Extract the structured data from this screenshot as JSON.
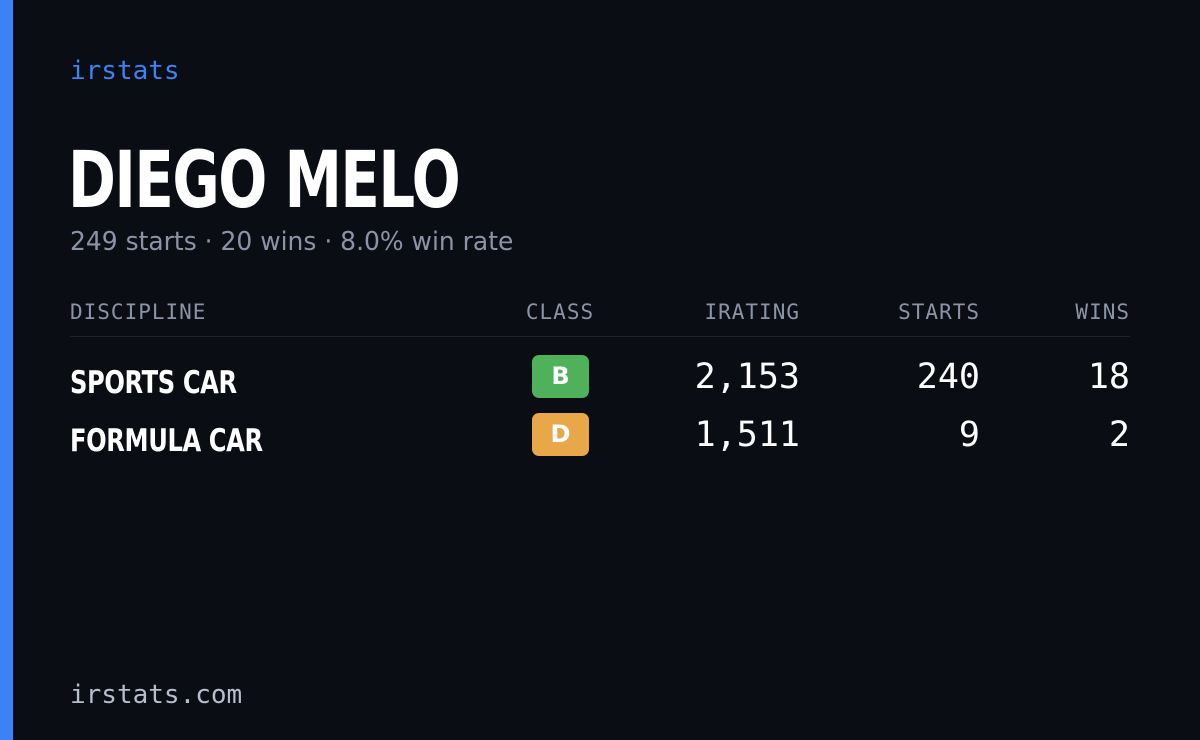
{
  "brand": "irstats",
  "driver": {
    "name": "DIEGO MELO",
    "summary": "249 starts · 20 wins · 8.0% win rate"
  },
  "table": {
    "headers": {
      "discipline": "DISCIPLINE",
      "class": "CLASS",
      "irating": "IRATING",
      "starts": "STARTS",
      "wins": "WINS"
    },
    "rows": [
      {
        "discipline": "SPORTS CAR",
        "class": "B",
        "class_color": "#4fb15a",
        "irating": "2,153",
        "starts": "240",
        "wins": "18"
      },
      {
        "discipline": "FORMULA CAR",
        "class": "D",
        "class_color": "#e8a84a",
        "irating": "1,511",
        "starts": "9",
        "wins": "2"
      }
    ]
  },
  "footer": "irstats.com",
  "colors": {
    "background": "#0a0d14",
    "accent": "#3b82f6",
    "muted_text": "#8b94a7"
  }
}
